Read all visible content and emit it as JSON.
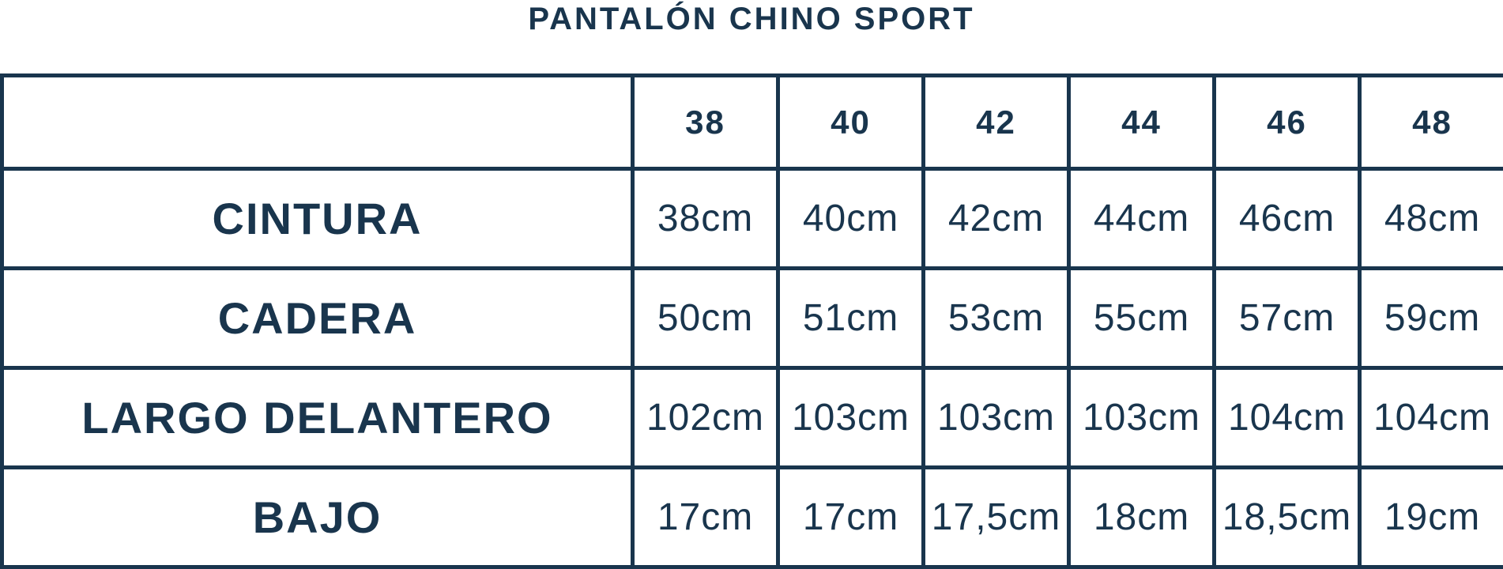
{
  "title": "PANTALÓN CHINO SPORT",
  "colors": {
    "ink": "#19354d",
    "background": "#ffffff"
  },
  "table": {
    "sizes": [
      "38",
      "40",
      "42",
      "44",
      "46",
      "48"
    ],
    "rows": [
      {
        "label": "CINTURA",
        "values": [
          "38cm",
          "40cm",
          "42cm",
          "44cm",
          "46cm",
          "48cm"
        ]
      },
      {
        "label": "CADERA",
        "values": [
          "50cm",
          "51cm",
          "53cm",
          "55cm",
          "57cm",
          "59cm"
        ]
      },
      {
        "label": "LARGO DELANTERO",
        "values": [
          "102cm",
          "103cm",
          "103cm",
          "103cm",
          "104cm",
          "104cm"
        ]
      },
      {
        "label": "BAJO",
        "values": [
          "17cm",
          "17cm",
          "17,5cm",
          "18cm",
          "18,5cm",
          "19cm"
        ]
      }
    ]
  },
  "chart_data": {
    "type": "table",
    "title": "PANTALÓN CHINO SPORT",
    "columns": [
      "",
      "38",
      "40",
      "42",
      "44",
      "46",
      "48"
    ],
    "rows": [
      [
        "CINTURA",
        "38cm",
        "40cm",
        "42cm",
        "44cm",
        "46cm",
        "48cm"
      ],
      [
        "CADERA",
        "50cm",
        "51cm",
        "53cm",
        "55cm",
        "57cm",
        "59cm"
      ],
      [
        "LARGO DELANTERO",
        "102cm",
        "103cm",
        "103cm",
        "103cm",
        "104cm",
        "104cm"
      ],
      [
        "BAJO",
        "17cm",
        "17cm",
        "17,5cm",
        "18cm",
        "18,5cm",
        "19cm"
      ]
    ]
  }
}
